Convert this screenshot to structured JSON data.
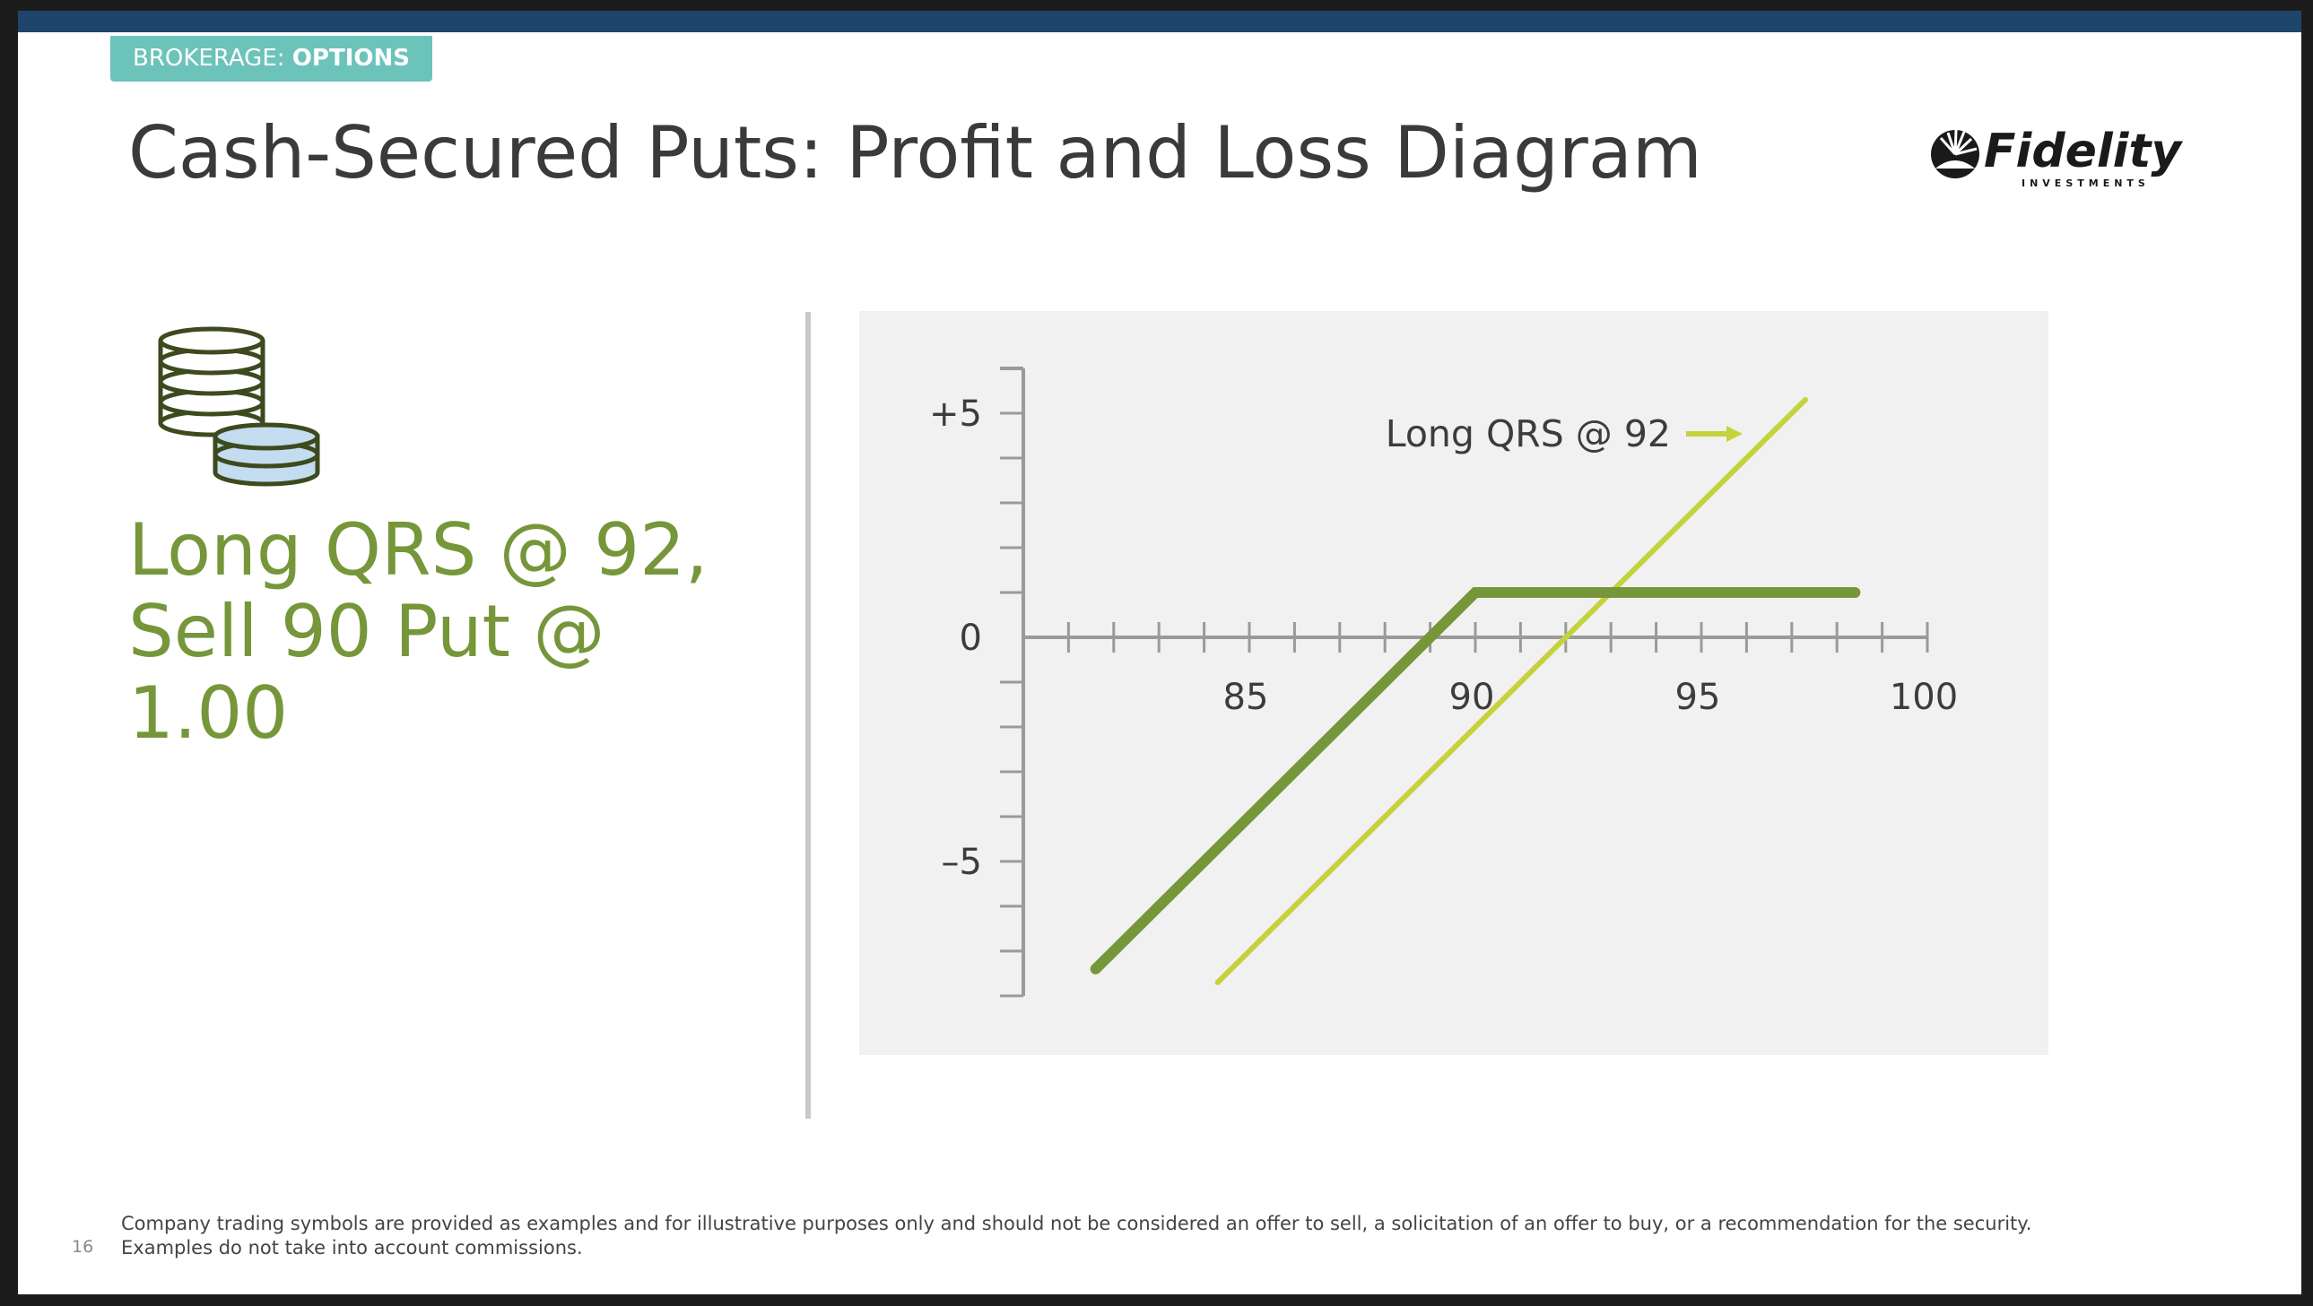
{
  "header": {
    "badge_prefix": "BROKERAGE: ",
    "badge_section": "OPTIONS",
    "title": "Cash-Secured Puts: Profit and Loss Diagram",
    "logo_text": "Fidelity",
    "logo_subtext": "INVESTMENTS"
  },
  "left_panel": {
    "icon": "coin-stack-icon",
    "lines": [
      "Long QRS @ 92,",
      "Sell 90 Put @",
      "1.00"
    ]
  },
  "chart_data": {
    "type": "line",
    "xlim": [
      80,
      100
    ],
    "ylim": [
      -8,
      6
    ],
    "x_ticks": [
      85,
      90,
      95,
      100
    ],
    "y_ticks": [
      {
        "value": 5,
        "label": "+5"
      },
      {
        "value": 0,
        "label": "0"
      },
      {
        "value": -5,
        "label": "–5"
      }
    ],
    "x_minor_step": 1,
    "y_minor_step": 1,
    "grid": false,
    "series": [
      {
        "name": "Long QRS @ 92",
        "color": "#c5d23c",
        "points": [
          [
            84.3,
            -7.7
          ],
          [
            97.3,
            5.3
          ]
        ]
      },
      {
        "color": "#76963a",
        "points": [
          [
            81.6,
            -7.4
          ],
          [
            90,
            1
          ],
          [
            98.4,
            1
          ]
        ]
      }
    ],
    "annotations": [
      {
        "text": "Long QRS @ 92",
        "arrow": "right",
        "color": "#c5d23c"
      }
    ]
  },
  "footer": {
    "page_number": "16",
    "disclaimer_line1": "Company trading symbols are provided as examples and for illustrative purposes only and should not be considered an offer to  sell, a solicitation of an offer to buy, or a recommendation for the security.",
    "disclaimer_line2": "Examples do not take into account commissions."
  },
  "colors": {
    "top_bar": "#20456d",
    "badge": "#6cc3b9",
    "accent_green": "#76963a",
    "light_green": "#c5d23c",
    "panel_bg": "#f1f1f1"
  }
}
